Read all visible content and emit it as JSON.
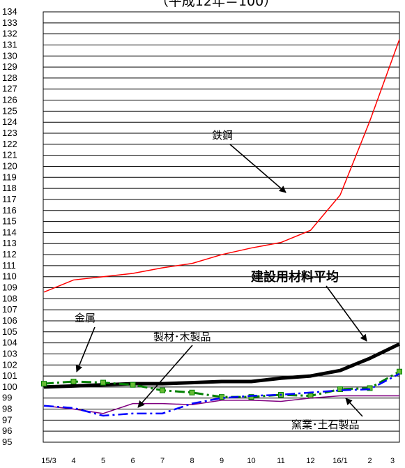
{
  "chart_data": {
    "type": "line",
    "title": "（平成12年＝100）",
    "categories": [
      "15/3",
      "4",
      "5",
      "6",
      "7",
      "8",
      "9",
      "10",
      "11",
      "12",
      "16/1",
      "2",
      "3"
    ],
    "ylim": [
      95,
      134
    ],
    "y_ticks": [
      "95",
      "96",
      "97",
      "98",
      "99",
      "100",
      "101",
      "102",
      "103",
      "104",
      "105",
      "106",
      "107",
      "108",
      "109",
      "110",
      "111",
      "112",
      "113",
      "114",
      "115",
      "116",
      "117",
      "118",
      "119",
      "120",
      "121",
      "122",
      "123",
      "124",
      "125",
      "126",
      "127",
      "128",
      "129",
      "130",
      "131",
      "132",
      "133",
      "134"
    ],
    "grid": true,
    "series": [
      {
        "name": "鉄鋼",
        "color": "#ff0000",
        "style": "solid",
        "values": [
          108.6,
          109.7,
          110.0,
          110.3,
          110.8,
          111.2,
          112.0,
          112.6,
          113.1,
          114.2,
          117.4,
          124.1,
          131.5
        ]
      },
      {
        "name": "建設用材料平均",
        "color": "#000000",
        "style": "thick",
        "values": [
          100.0,
          100.1,
          100.2,
          100.3,
          100.3,
          100.4,
          100.5,
          100.5,
          100.8,
          101.0,
          101.5,
          102.6,
          103.9
        ]
      },
      {
        "name": "金属",
        "color": "#008000",
        "style": "dashdot-markers",
        "values": [
          100.3,
          100.5,
          100.4,
          100.2,
          99.7,
          99.5,
          99.1,
          99.1,
          99.3,
          99.2,
          99.8,
          99.9,
          101.4
        ]
      },
      {
        "name": "製材･木製品",
        "color": "#800080",
        "style": "solid",
        "values": [
          98.3,
          98.0,
          97.6,
          98.5,
          98.5,
          98.4,
          98.8,
          98.8,
          98.7,
          99.0,
          99.2,
          99.2,
          99.2
        ]
      },
      {
        "name": "窯業･土石製品",
        "color": "#0000ff",
        "style": "dashdot",
        "values": [
          98.3,
          98.1,
          97.4,
          97.6,
          97.6,
          98.5,
          99.0,
          99.2,
          99.3,
          99.5,
          99.7,
          99.8,
          101.2
        ]
      }
    ],
    "annotations": [
      {
        "id": "tekko",
        "text": "鉄鋼"
      },
      {
        "id": "heikin",
        "text": "建設用材料平均"
      },
      {
        "id": "kinzoku",
        "text": "金属"
      },
      {
        "id": "seizai",
        "text": "製材･木製品"
      },
      {
        "id": "yogyo",
        "text": "窯業･土石製品"
      }
    ]
  }
}
